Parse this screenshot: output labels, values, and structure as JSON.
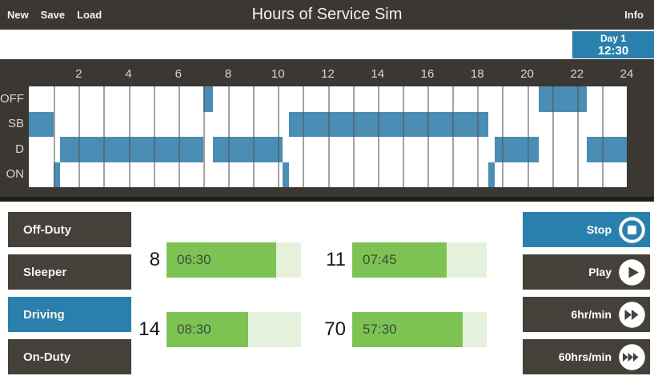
{
  "app_title": "Hours of Service Sim",
  "nav": {
    "new": "New",
    "save": "Save",
    "load": "Load",
    "info": "Info"
  },
  "day_banner": {
    "day_label": "Day 1",
    "time": "12:30"
  },
  "colors": {
    "dark": "#3b3834",
    "button_dark": "#45413a",
    "accent_blue": "#2a80ac",
    "segment_blue": "#4a8db5",
    "green": "#7cc353",
    "green_light": "#e6f1dc"
  },
  "chart_data": {
    "type": "step",
    "title": "Duty status log grid (Day 1)",
    "x_range": [
      0,
      24
    ],
    "x_ticks": [
      2,
      4,
      6,
      8,
      10,
      12,
      14,
      16,
      18,
      20,
      22,
      24
    ],
    "rows": [
      "OFF",
      "SB",
      "D",
      "ON"
    ],
    "grid": true,
    "segments": [
      {
        "status": "SB",
        "start": 0,
        "end": 1
      },
      {
        "status": "ON",
        "start": 1,
        "end": 1.25
      },
      {
        "status": "D",
        "start": 1.25,
        "end": 7
      },
      {
        "status": "OFF",
        "start": 7,
        "end": 7.4
      },
      {
        "status": "D",
        "start": 7.4,
        "end": 10.2
      },
      {
        "status": "ON",
        "start": 10.2,
        "end": 10.45
      },
      {
        "status": "SB",
        "start": 10.45,
        "end": 18.45
      },
      {
        "status": "ON",
        "start": 18.45,
        "end": 18.7
      },
      {
        "status": "D",
        "start": 18.7,
        "end": 20.45
      },
      {
        "status": "OFF",
        "start": 20.45,
        "end": 22.4
      },
      {
        "status": "D",
        "start": 22.4,
        "end": 24
      }
    ]
  },
  "status_buttons": [
    {
      "label": "Off-Duty",
      "active": false
    },
    {
      "label": "Sleeper",
      "active": false
    },
    {
      "label": "Driving",
      "active": true
    },
    {
      "label": "On-Duty",
      "active": false
    }
  ],
  "gauges": [
    {
      "limit": "8",
      "value": "06:30",
      "fraction": 0.8125
    },
    {
      "limit": "11",
      "value": "07:45",
      "fraction": 0.705
    },
    {
      "limit": "14",
      "value": "08:30",
      "fraction": 0.607
    },
    {
      "limit": "70",
      "value": "57:30",
      "fraction": 0.821
    }
  ],
  "controls": [
    {
      "label": "Stop",
      "icon": "stop-icon",
      "active": true
    },
    {
      "label": "Play",
      "icon": "play-icon",
      "active": false
    },
    {
      "label": "6hr/min",
      "icon": "fast-forward-icon",
      "active": false
    },
    {
      "label": "60hrs/min",
      "icon": "fastest-forward-icon",
      "active": false
    }
  ]
}
